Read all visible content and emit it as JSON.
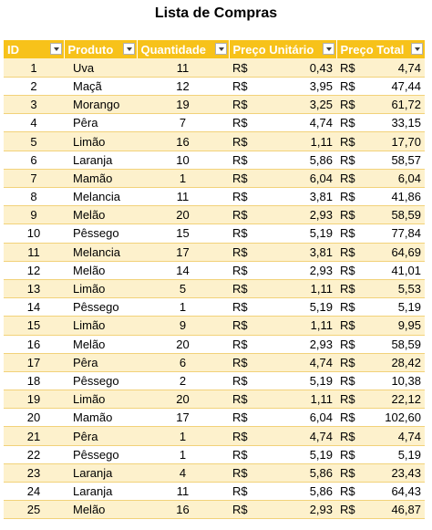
{
  "title": "Lista de Compras",
  "colors": {
    "header_bg": "#f7c21a",
    "header_text": "#ffffff",
    "band": "#fdf1cc",
    "row_border": "#f2d27a"
  },
  "table": {
    "headers": {
      "id": "ID",
      "produto": "Produto",
      "quantidade": "Quantidade",
      "preco_unitario": "Preço Unitário",
      "preco_total": "Preço Total"
    },
    "currency": "R$",
    "filter_icon": "dropdown-filter-icon",
    "rows": [
      {
        "id": "1",
        "produto": "Uva",
        "quantidade": "11",
        "preco": "0,43",
        "total": "4,74"
      },
      {
        "id": "2",
        "produto": "Maçã",
        "quantidade": "12",
        "preco": "3,95",
        "total": "47,44"
      },
      {
        "id": "3",
        "produto": "Morango",
        "quantidade": "19",
        "preco": "3,25",
        "total": "61,72"
      },
      {
        "id": "4",
        "produto": "Pêra",
        "quantidade": "7",
        "preco": "4,74",
        "total": "33,15"
      },
      {
        "id": "5",
        "produto": "Limão",
        "quantidade": "16",
        "preco": "1,11",
        "total": "17,70"
      },
      {
        "id": "6",
        "produto": "Laranja",
        "quantidade": "10",
        "preco": "5,86",
        "total": "58,57"
      },
      {
        "id": "7",
        "produto": "Mamão",
        "quantidade": "1",
        "preco": "6,04",
        "total": "6,04"
      },
      {
        "id": "8",
        "produto": "Melancia",
        "quantidade": "11",
        "preco": "3,81",
        "total": "41,86"
      },
      {
        "id": "9",
        "produto": "Melão",
        "quantidade": "20",
        "preco": "2,93",
        "total": "58,59"
      },
      {
        "id": "10",
        "produto": "Pêssego",
        "quantidade": "15",
        "preco": "5,19",
        "total": "77,84"
      },
      {
        "id": "11",
        "produto": "Melancia",
        "quantidade": "17",
        "preco": "3,81",
        "total": "64,69"
      },
      {
        "id": "12",
        "produto": "Melão",
        "quantidade": "14",
        "preco": "2,93",
        "total": "41,01"
      },
      {
        "id": "13",
        "produto": "Limão",
        "quantidade": "5",
        "preco": "1,11",
        "total": "5,53"
      },
      {
        "id": "14",
        "produto": "Pêssego",
        "quantidade": "1",
        "preco": "5,19",
        "total": "5,19"
      },
      {
        "id": "15",
        "produto": "Limão",
        "quantidade": "9",
        "preco": "1,11",
        "total": "9,95"
      },
      {
        "id": "16",
        "produto": "Melão",
        "quantidade": "20",
        "preco": "2,93",
        "total": "58,59"
      },
      {
        "id": "17",
        "produto": "Pêra",
        "quantidade": "6",
        "preco": "4,74",
        "total": "28,42"
      },
      {
        "id": "18",
        "produto": "Pêssego",
        "quantidade": "2",
        "preco": "5,19",
        "total": "10,38"
      },
      {
        "id": "19",
        "produto": "Limão",
        "quantidade": "20",
        "preco": "1,11",
        "total": "22,12"
      },
      {
        "id": "20",
        "produto": "Mamão",
        "quantidade": "17",
        "preco": "6,04",
        "total": "102,60"
      },
      {
        "id": "21",
        "produto": "Pêra",
        "quantidade": "1",
        "preco": "4,74",
        "total": "4,74"
      },
      {
        "id": "22",
        "produto": "Pêssego",
        "quantidade": "1",
        "preco": "5,19",
        "total": "5,19"
      },
      {
        "id": "23",
        "produto": "Laranja",
        "quantidade": "4",
        "preco": "5,86",
        "total": "23,43"
      },
      {
        "id": "24",
        "produto": "Laranja",
        "quantidade": "11",
        "preco": "5,86",
        "total": "64,43"
      },
      {
        "id": "25",
        "produto": "Melão",
        "quantidade": "16",
        "preco": "2,93",
        "total": "46,87"
      }
    ]
  }
}
